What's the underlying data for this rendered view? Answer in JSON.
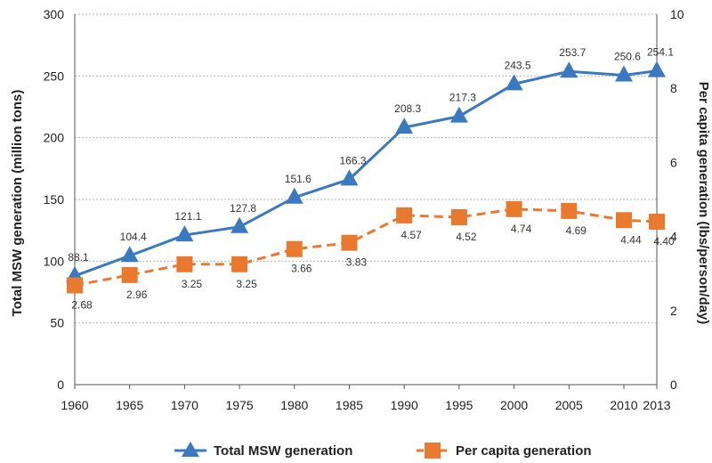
{
  "chart_data": {
    "type": "line",
    "x": [
      1960,
      1965,
      1970,
      1975,
      1980,
      1985,
      1990,
      1995,
      2000,
      2005,
      2010,
      2013
    ],
    "x_tick_labels": [
      "1960",
      "1965",
      "1970",
      "1975",
      "1980",
      "1985",
      "1990",
      "1995",
      "2000",
      "2005",
      "2010",
      "2013"
    ],
    "series": [
      {
        "name": "Total MSW generation",
        "axis": "left",
        "color": "#3a78bf",
        "marker": "triangle",
        "line_style": "solid",
        "values": [
          88.1,
          104.4,
          121.1,
          127.8,
          151.6,
          166.3,
          208.3,
          217.3,
          243.5,
          253.7,
          250.6,
          254.1
        ],
        "labels": [
          "88.1",
          "104.4",
          "121.1",
          "127.8",
          "151.6",
          "166.3",
          "208.3",
          "217.3",
          "243.5",
          "253.7",
          "250.6",
          "254.1"
        ]
      },
      {
        "name": "Per capita generation",
        "axis": "right",
        "color": "#e8792f",
        "marker": "square",
        "line_style": "dashed",
        "values": [
          2.68,
          2.96,
          3.25,
          3.25,
          3.66,
          3.83,
          4.57,
          4.52,
          4.74,
          4.69,
          4.44,
          4.4
        ],
        "labels": [
          "2.68",
          "2.96",
          "3.25",
          "3.25",
          "3.66",
          "3.83",
          "4.57",
          "4.52",
          "4.74",
          "4.69",
          "4.44",
          "4.40"
        ]
      }
    ],
    "y_left": {
      "label": "Total MSW generation (million tons)",
      "min": 0,
      "max": 300,
      "ticks": [
        0,
        50,
        100,
        150,
        200,
        250,
        300
      ],
      "tick_labels": [
        "0",
        "50",
        "100",
        "150",
        "200",
        "250",
        "300"
      ]
    },
    "y_right": {
      "label": "Per capita generation (lbs/person/day)",
      "min": 0,
      "max": 10,
      "ticks": [
        0,
        2,
        4,
        6,
        8,
        10
      ],
      "tick_labels": [
        "0",
        "2",
        "4",
        "6",
        "8",
        "10"
      ]
    },
    "grid": "horizontal-dotted",
    "legend": {
      "position": "bottom",
      "items": [
        "Total MSW generation",
        "Per capita generation"
      ]
    }
  }
}
